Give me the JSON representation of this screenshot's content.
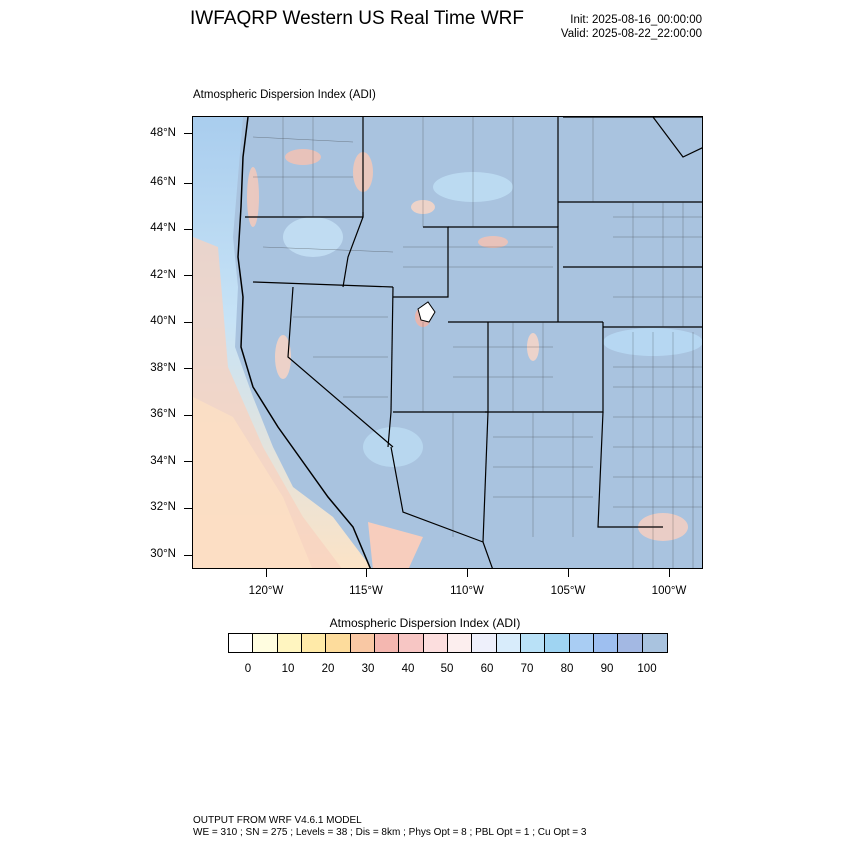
{
  "header": {
    "title": "IWFAQRP Western US Real Time WRF",
    "init": "Init: 2025-08-16_00:00:00",
    "valid": "Valid: 2025-08-22_22:00:00"
  },
  "panel": {
    "title": "Atmospheric Dispersion Index   (ADI)"
  },
  "map": {
    "lat_labels": [
      "48°N",
      "46°N",
      "44°N",
      "42°N",
      "40°N",
      "38°N",
      "36°N",
      "34°N",
      "32°N",
      "30°N"
    ],
    "lon_labels": [
      "120°W",
      "115°W",
      "110°W",
      "105°W",
      "100°W"
    ],
    "colors": {
      "background_adi": "#a9c3df",
      "ocean_high": "#f7c8bd",
      "ocean_low": "#fde7c8"
    }
  },
  "colorbar": {
    "title": "Atmospheric Dispersion Index  (ADI)",
    "labels": [
      "0",
      "10",
      "20",
      "30",
      "40",
      "50",
      "60",
      "70",
      "80",
      "90",
      "100"
    ],
    "colors": [
      "#ffffff",
      "#fffde0",
      "#fff5c0",
      "#ffeaa8",
      "#fddc9c",
      "#f9c8a4",
      "#f4b7b0",
      "#f7c6c4",
      "#fcdede",
      "#fceeee",
      "#eef0fb",
      "#d8ecfb",
      "#b9e1f7",
      "#9fd4f2",
      "#a9cdf3",
      "#9ebff0",
      "#a3b8e3",
      "#a9c3df"
    ]
  },
  "footer": {
    "line1": "OUTPUT FROM WRF V4.6.1 MODEL",
    "line2": "WE = 310 ; SN = 275 ; Levels = 38 ; Dis = 8km ; Phys Opt = 8 ; PBL Opt = 1 ; Cu Opt = 3"
  }
}
